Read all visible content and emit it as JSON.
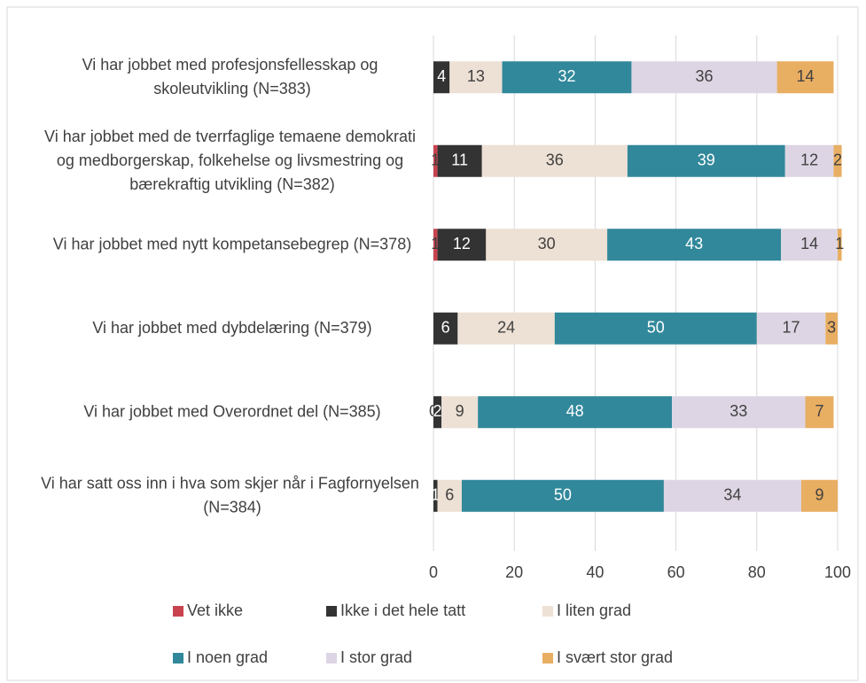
{
  "chart_data": {
    "type": "stacked_barh",
    "categories": [
      "Vi har jobbet med profesjonsfellesskap og skoleutvikling (N=383)",
      "Vi har jobbet med de tverrfaglige temaene demokrati og medborgerskap, folkehelse og livsmestring og bærekraftig utvikling (N=382)",
      "Vi har jobbet med nytt kompetansebegrep (N=378)",
      "Vi har jobbet med dybdelæring (N=379)",
      "Vi har jobbet med Overordnet del (N=385)",
      "Vi har satt oss inn i hva som skjer når i Fagfornyelsen (N=384)"
    ],
    "series": [
      {
        "name": "Vet ikke",
        "color": "#c9434f",
        "values": [
          null,
          1,
          1,
          null,
          0,
          null
        ]
      },
      {
        "name": "Ikke i det hele tatt",
        "color": "#333333",
        "values": [
          4,
          11,
          12,
          6,
          2,
          1
        ]
      },
      {
        "name": "I liten grad",
        "color": "#ede0d4",
        "values": [
          13,
          36,
          30,
          24,
          9,
          6
        ]
      },
      {
        "name": "I noen grad",
        "color": "#31889a",
        "values": [
          32,
          39,
          43,
          50,
          48,
          50
        ]
      },
      {
        "name": "I stor grad",
        "color": "#ddd5e3",
        "values": [
          36,
          12,
          14,
          17,
          33,
          34
        ]
      },
      {
        "name": "I svært stor grad",
        "color": "#e8ae62",
        "values": [
          14,
          2,
          1,
          3,
          7,
          9
        ]
      }
    ],
    "xlim": [
      0,
      100
    ],
    "xticks": [
      0,
      20,
      40,
      60,
      80,
      100
    ],
    "grid": true
  }
}
